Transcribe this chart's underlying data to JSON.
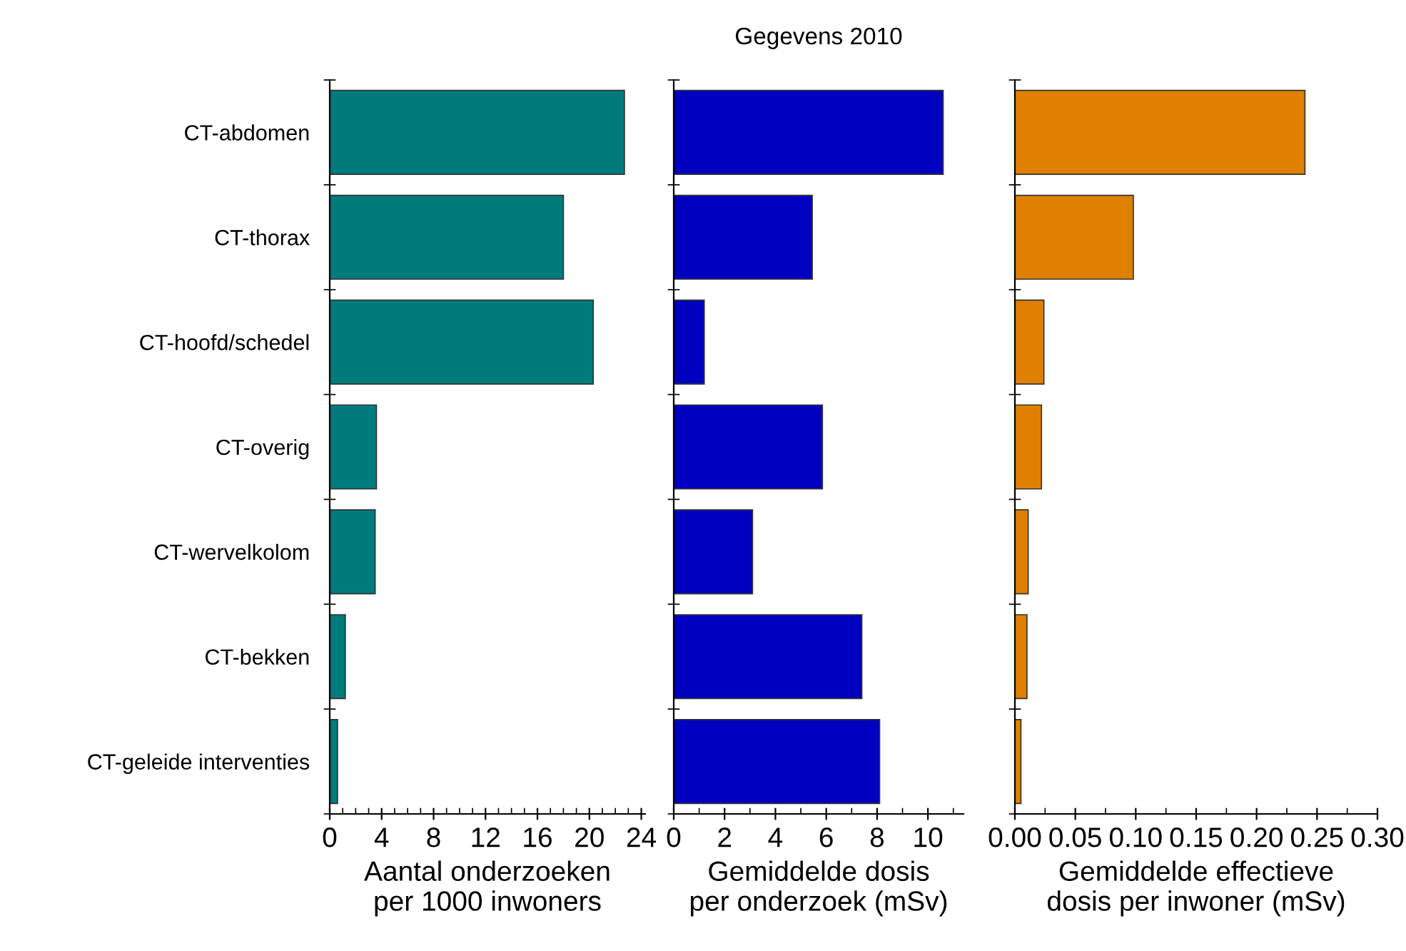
{
  "chart_data": [
    {
      "type": "bar",
      "orientation": "horizontal",
      "categories": [
        "CT-abdomen",
        "CT-thorax",
        "CT-hoofd/schedel",
        "CT-overig",
        "CT-wervelkolom",
        "CT-bekken",
        "CT-geleide interventies"
      ],
      "values": [
        22.7,
        18.0,
        20.3,
        3.6,
        3.5,
        1.2,
        0.6
      ],
      "color": "#007b7b",
      "xlabel": "Aantal onderzoeken\nper 1000 inwoners",
      "xlim": [
        0,
        24.3
      ],
      "xticks": [
        0,
        4,
        8,
        12,
        16,
        20,
        24
      ],
      "grid": false
    },
    {
      "type": "bar",
      "orientation": "horizontal",
      "title": "Gegevens 2010",
      "categories": [
        null,
        null,
        null,
        null,
        null,
        null,
        null
      ],
      "values": [
        10.6,
        5.45,
        1.2,
        5.85,
        3.1,
        7.4,
        8.1
      ],
      "color": "#0000c0",
      "xlabel": "Gemiddelde dosis\nper onderzoek (mSv)",
      "xlim": [
        0,
        11.4
      ],
      "xticks": [
        0,
        2,
        4,
        6,
        8,
        10
      ],
      "grid": false
    },
    {
      "type": "bar",
      "orientation": "horizontal",
      "categories": [
        null,
        null,
        null,
        null,
        null,
        null,
        null
      ],
      "values": [
        0.24,
        0.098,
        0.024,
        0.022,
        0.011,
        0.01,
        0.005
      ],
      "color": "#e08000",
      "xlabel": "Gemiddelde effectieve\ndosis per inwoner (mSv)",
      "xlim": [
        0,
        0.3
      ],
      "xticks": [
        {
          "value": 0,
          "label": "0.00"
        },
        0.05,
        {
          "value": 0.1,
          "label": "0.10"
        },
        0.15,
        {
          "value": 0.2,
          "label": "0.20"
        },
        0.25,
        {
          "value": 0.3,
          "label": "0.30"
        }
      ],
      "grid": false
    }
  ]
}
